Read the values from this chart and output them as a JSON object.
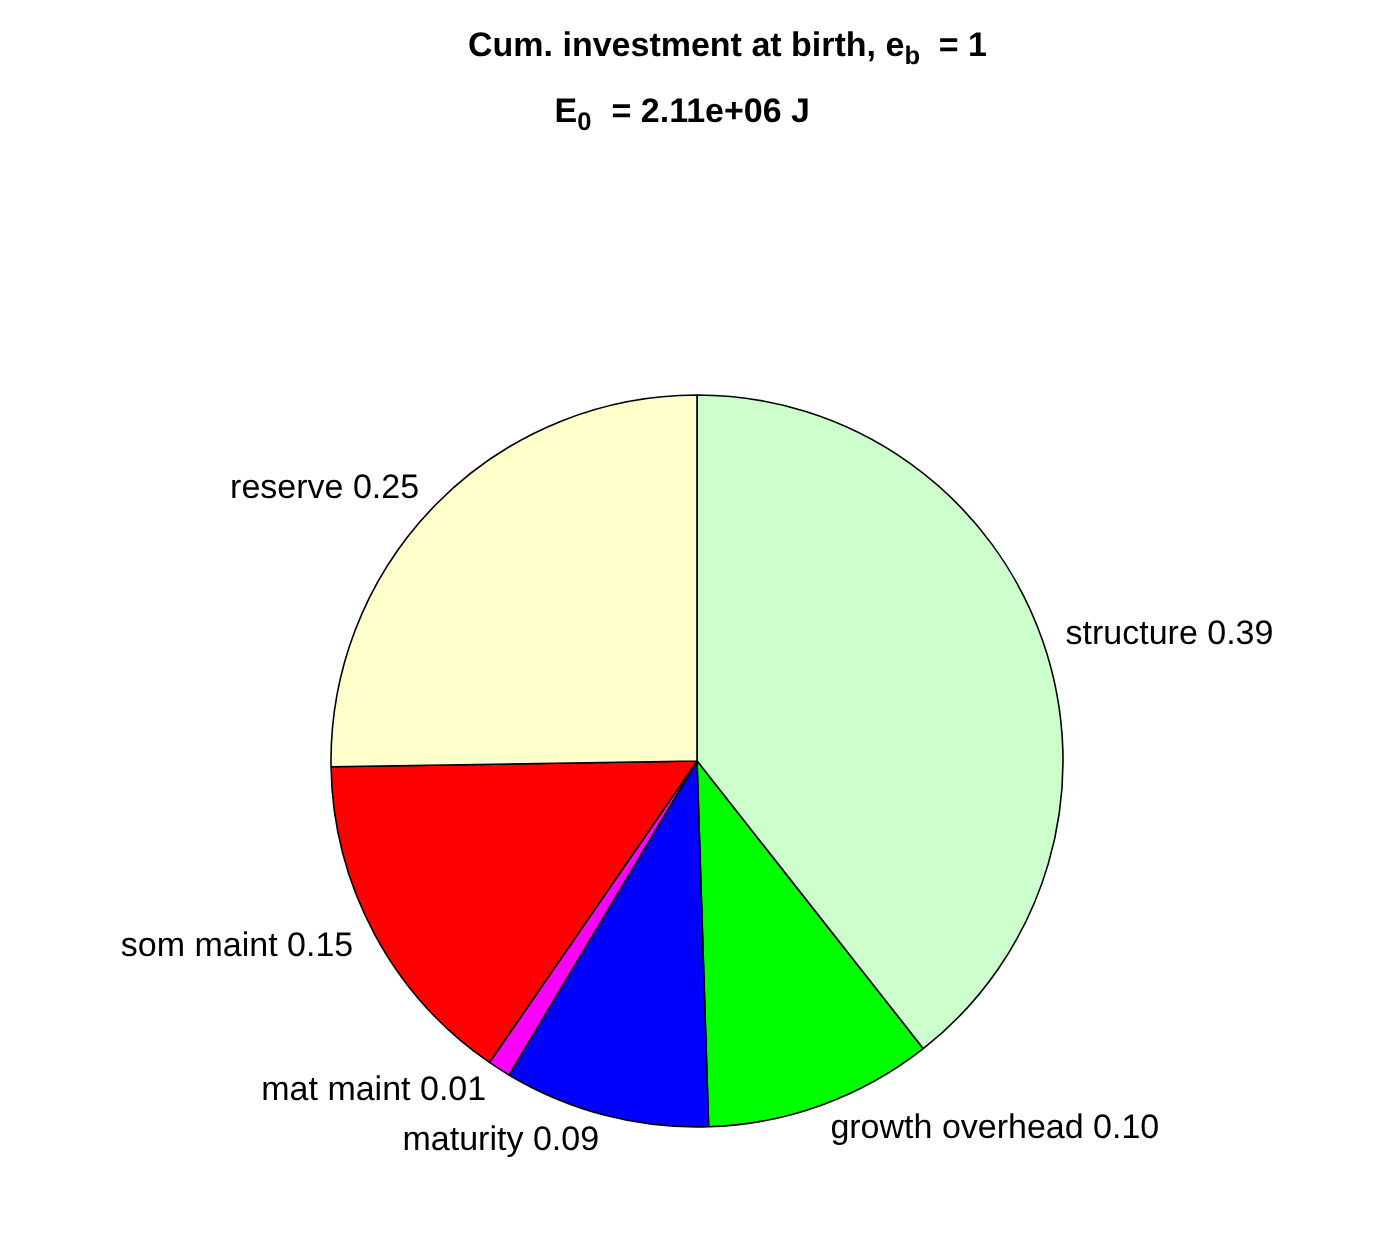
{
  "chart_data": {
    "type": "pie",
    "title": "Cum. investment at birth, e$_{b}$ = 1",
    "subtitle": "E$_{0}$ = 2.11e+06 J",
    "categories": [
      "structure",
      "growth overhead",
      "maturity",
      "mat maint",
      "som maint",
      "reserve"
    ],
    "values": [
      0.39,
      0.1,
      0.09,
      0.01,
      0.15,
      0.25
    ],
    "value_labels": [
      "0.39",
      "0.10",
      "0.09",
      "0.01",
      "0.15",
      "0.25"
    ],
    "colors": [
      "#ccffcc",
      "#00ff00",
      "#0000ff",
      "#ff00ff",
      "#ff0000",
      "#ffffcc"
    ]
  }
}
